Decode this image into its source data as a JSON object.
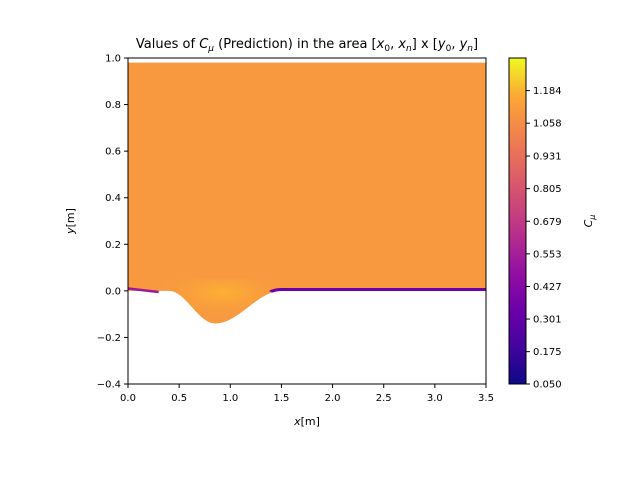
{
  "chart_data": {
    "type": "heatmap",
    "title": {
      "prefix": "Values of ",
      "var_main": "C",
      "var_sub": "μ",
      "middle": " (Prediction) in the area [",
      "x0": "x",
      "x0_sub": "0",
      "sep1": ", ",
      "xn": "x",
      "xn_sub": "n",
      "mid2": "] x [",
      "y0": "y",
      "y0_sub": "0",
      "sep2": ", ",
      "yn": "y",
      "yn_sub": "n",
      "suffix": "]"
    },
    "xlabel": {
      "var": "x",
      "unit": "[m]"
    },
    "ylabel": {
      "var": "y",
      "unit": "[m]"
    },
    "xlim": [
      0.0,
      3.5
    ],
    "ylim": [
      -0.4,
      1.0
    ],
    "x_ticks": [
      0.0,
      0.5,
      1.0,
      1.5,
      2.0,
      2.5,
      3.0,
      3.5
    ],
    "x_tick_labels": [
      "0.0",
      "0.5",
      "1.0",
      "1.5",
      "2.0",
      "2.5",
      "3.0",
      "3.5"
    ],
    "y_ticks": [
      -0.4,
      -0.2,
      0.0,
      0.2,
      0.4,
      0.6,
      0.8,
      1.0
    ],
    "y_tick_labels": [
      "−0.4",
      "−0.2",
      "0.0",
      "0.2",
      "0.4",
      "0.6",
      "0.8",
      "1.0"
    ],
    "colormap": "plasma",
    "colorbar": {
      "label_main": "C",
      "label_sub": "μ",
      "min": 0.05,
      "max": 1.31,
      "ticks": [
        0.05,
        0.175,
        0.301,
        0.427,
        0.553,
        0.679,
        0.805,
        0.931,
        1.058,
        1.184
      ],
      "tick_labels": [
        "0.050",
        "0.175",
        "0.301",
        "0.427",
        "0.553",
        "0.679",
        "0.805",
        "0.931",
        "1.058",
        "1.184"
      ]
    },
    "field": {
      "bulk_value": 1.0,
      "bulk_color": "#f89940",
      "domain_top_y": 0.98,
      "bottom_wall_y": 0.0,
      "bump": {
        "x_start": 0.4,
        "x_center": 0.85,
        "x_end": 1.5,
        "depth_y": -0.14,
        "value": 1.15
      },
      "wall_layer_value": 0.35,
      "wall_layer_color": "#6a00a8"
    },
    "grid": false
  }
}
